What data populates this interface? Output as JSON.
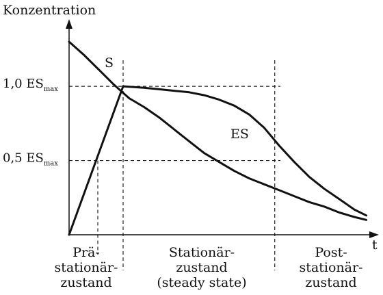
{
  "chart_data": {
    "type": "line",
    "title": "",
    "ylabel": "Konzentration",
    "xlabel": "t",
    "y_ticks": [
      {
        "value": 1.0,
        "label": "1,0 ES",
        "sub": "max"
      },
      {
        "value": 0.5,
        "label": "0,5 ES",
        "sub": "max"
      }
    ],
    "xlim": [
      0,
      10
    ],
    "ylim": [
      0,
      1.42
    ],
    "phase_boundaries": [
      1.8,
      6.85
    ],
    "phases": [
      {
        "lines": [
          "Prä-",
          "stationär-",
          "zustand"
        ]
      },
      {
        "lines": [
          "Stationär-",
          "zustand",
          "(steady state)"
        ]
      },
      {
        "lines": [
          "Post-",
          "stationär-",
          "zustand"
        ]
      }
    ],
    "series": [
      {
        "name": "S",
        "x": [
          0.0,
          0.5,
          1.0,
          1.5,
          2.0,
          2.5,
          3.0,
          3.5,
          4.0,
          4.5,
          5.0,
          5.5,
          6.0,
          6.5,
          7.0,
          7.5,
          8.0,
          8.5,
          9.0,
          9.5,
          9.9
        ],
        "y": [
          1.3,
          1.21,
          1.11,
          1.01,
          0.92,
          0.86,
          0.79,
          0.71,
          0.63,
          0.55,
          0.49,
          0.43,
          0.38,
          0.34,
          0.3,
          0.26,
          0.22,
          0.19,
          0.15,
          0.12,
          0.1
        ]
      },
      {
        "name": "ES",
        "x": [
          0.0,
          1.8,
          2.5,
          3.0,
          3.5,
          4.0,
          4.5,
          5.0,
          5.5,
          6.0,
          6.5,
          7.0,
          7.5,
          8.0,
          8.5,
          9.0,
          9.5,
          9.9
        ],
        "y": [
          0.0,
          1.0,
          0.99,
          0.98,
          0.97,
          0.96,
          0.94,
          0.91,
          0.87,
          0.81,
          0.72,
          0.6,
          0.49,
          0.39,
          0.31,
          0.24,
          0.17,
          0.13
        ]
      }
    ],
    "grid": false,
    "legend": "inline"
  }
}
